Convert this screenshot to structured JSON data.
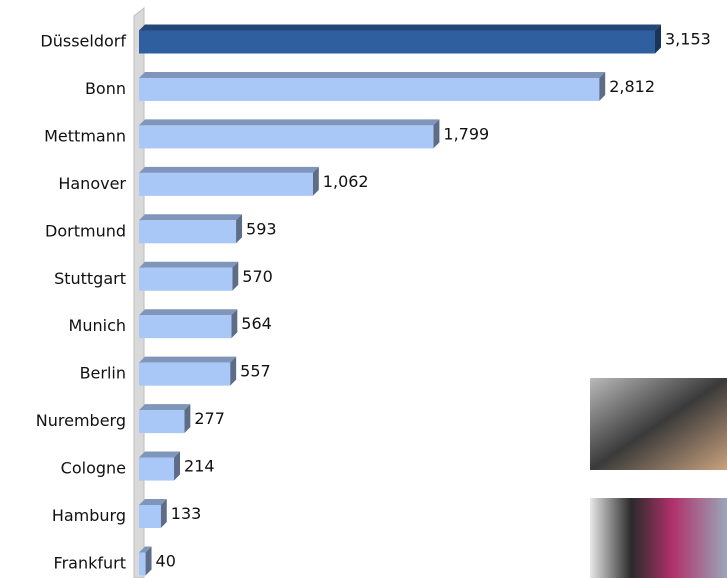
{
  "chart_data": {
    "type": "bar",
    "orientation": "horizontal",
    "categories": [
      "Düsseldorf",
      "Bonn",
      "Mettmann",
      "Hanover",
      "Dortmund",
      "Stuttgart",
      "Munich",
      "Berlin",
      "Nuremberg",
      "Cologne",
      "Hamburg",
      "Frankfurt"
    ],
    "values": [
      3153,
      2812,
      1799,
      1062,
      593,
      570,
      564,
      557,
      277,
      214,
      133,
      40
    ],
    "value_labels": [
      "3,153",
      "2,812",
      "1,799",
      "1,062",
      "593",
      "570",
      "564",
      "557",
      "277",
      "214",
      "133",
      "40"
    ],
    "colors": [
      "#2f5f9f",
      "#a9c7f7",
      "#a9c7f7",
      "#a9c7f7",
      "#a9c7f7",
      "#a9c7f7",
      "#a9c7f7",
      "#a9c7f7",
      "#a9c7f7",
      "#a9c7f7",
      "#a9c7f7",
      "#a9c7f7"
    ]
  }
}
